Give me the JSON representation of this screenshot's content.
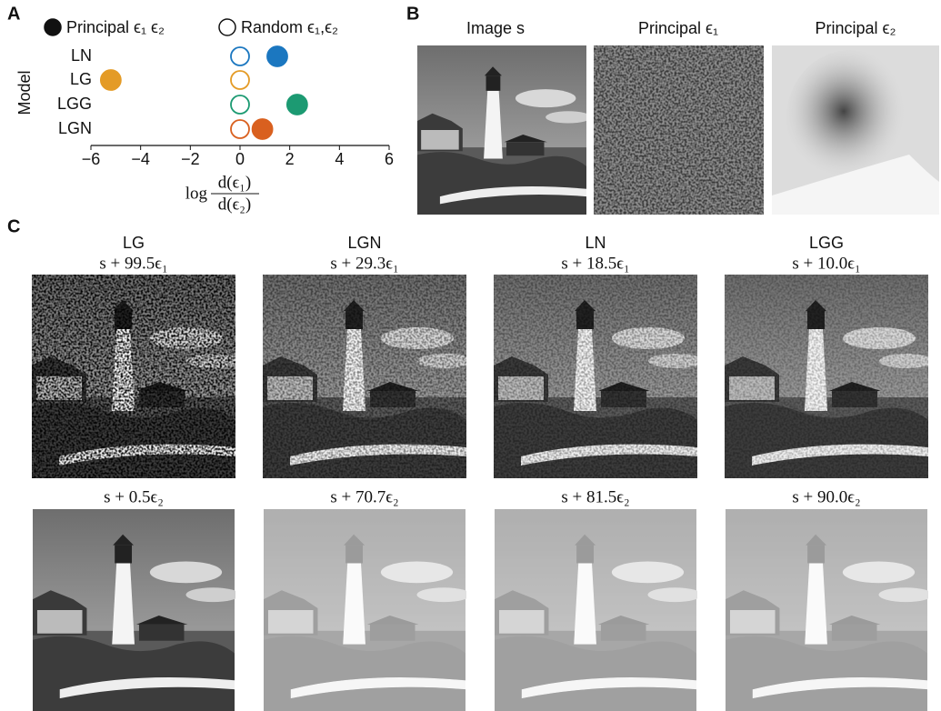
{
  "chart_data": {
    "type": "scatter",
    "panel": "A",
    "categories": [
      "LN",
      "LG",
      "LGG",
      "LGN"
    ],
    "series": [
      {
        "name": "Principal ϵ₁ ϵ₂",
        "style": "filled",
        "values": [
          1.5,
          -5.2,
          2.3,
          0.9
        ]
      },
      {
        "name": "Random ϵ₁,ϵ₂",
        "style": "open",
        "values": [
          0,
          0,
          0,
          0
        ]
      }
    ],
    "colors": [
      "#1b77c0",
      "#e49b26",
      "#1c9a72",
      "#d9601f"
    ],
    "legend_color": "#111111",
    "ylabel": "Model",
    "xlabel": {
      "prefix": "log",
      "numerator": "d(ϵ₁)",
      "denominator": "d(ϵ₂)"
    },
    "xlim": [
      -6,
      6
    ],
    "xticks": [
      {
        "value": -6,
        "label": "−6"
      },
      {
        "value": -4,
        "label": "−4"
      },
      {
        "value": -2,
        "label": "−2"
      },
      0,
      2,
      4,
      6
    ]
  },
  "panel_b": {
    "label": "B",
    "titles": [
      "Image s",
      "Principal ϵ₁",
      "Principal ϵ₂"
    ]
  },
  "panel_c": {
    "label": "C",
    "columns": [
      {
        "model": "LG",
        "top": "s + 99.5ϵ₁",
        "bottom": "s + 0.5ϵ₂"
      },
      {
        "model": "LGN",
        "top": "s + 29.3ϵ₁",
        "bottom": "s + 70.7ϵ₂"
      },
      {
        "model": "LN",
        "top": "s + 18.5ϵ₁",
        "bottom": "s + 81.5ϵ₂"
      },
      {
        "model": "LGG",
        "top": "s + 10.0ϵ₁",
        "bottom": "s + 90.0ϵ₂"
      }
    ]
  }
}
